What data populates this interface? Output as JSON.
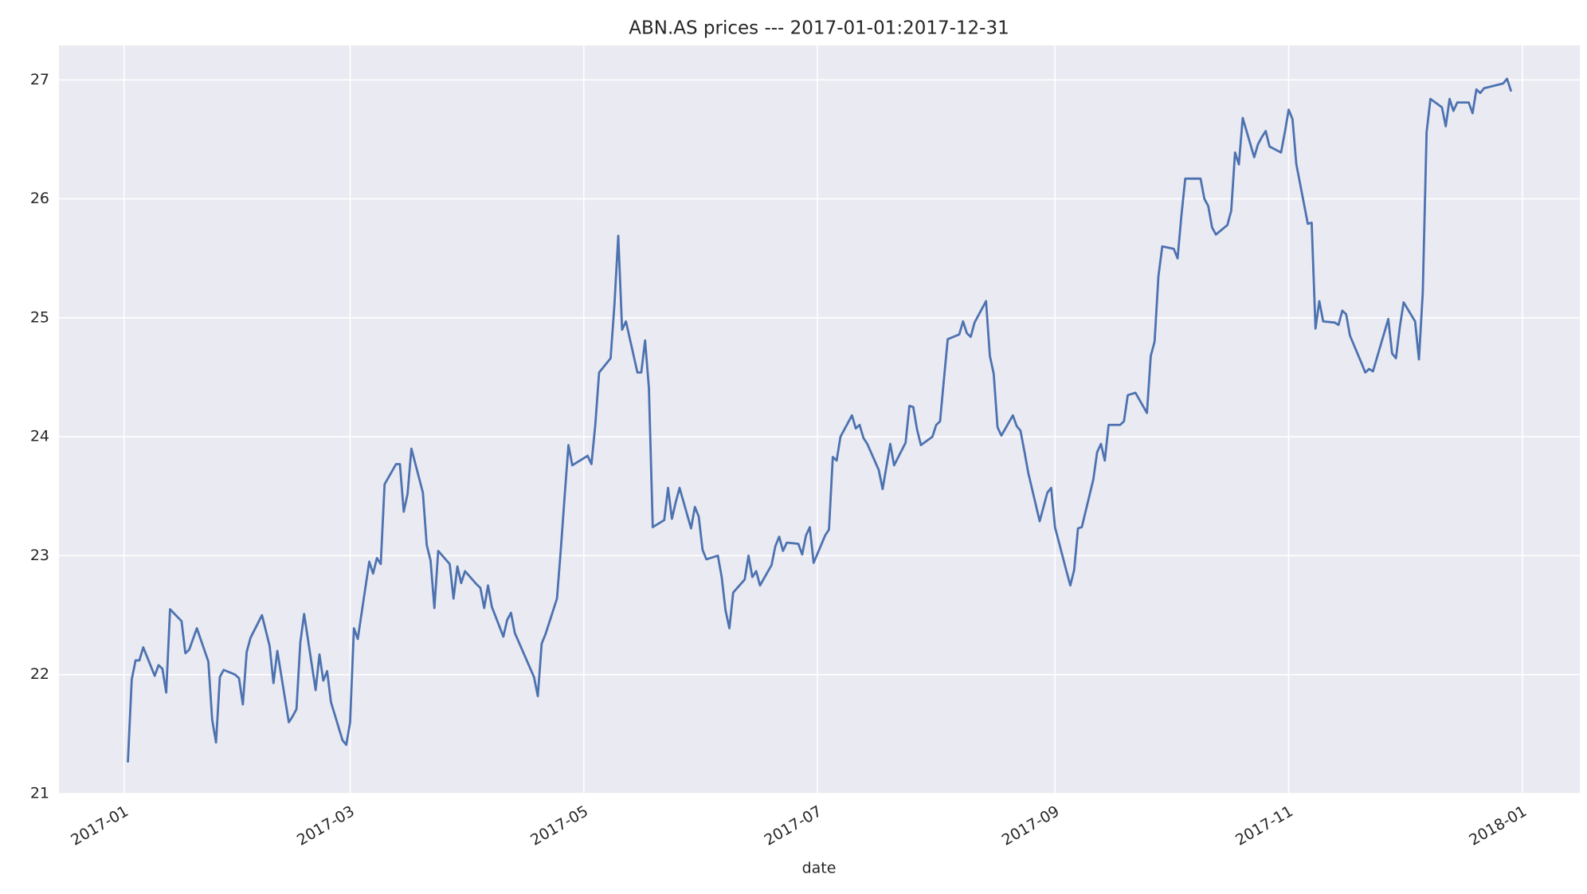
{
  "chart_data": {
    "type": "line",
    "title": "ABN.AS prices --- 2017-01-01:2017-12-31",
    "xlabel": "date",
    "color": "#4c72b0",
    "grid": true,
    "xlim": [
      "2016-12-15",
      "2018-01-16"
    ],
    "ylim": [
      21,
      27.29
    ],
    "yticks": [
      21,
      22,
      23,
      24,
      25,
      26,
      27
    ],
    "xticks": [
      {
        "value": "2017-01-01",
        "label": "2017-01"
      },
      {
        "value": "2017-03-01",
        "label": "2017-03"
      },
      {
        "value": "2017-05-01",
        "label": "2017-05"
      },
      {
        "value": "2017-07-01",
        "label": "2017-07"
      },
      {
        "value": "2017-09-01",
        "label": "2017-09"
      },
      {
        "value": "2017-11-01",
        "label": "2017-11"
      },
      {
        "value": "2018-01-01",
        "label": "2018-01"
      }
    ],
    "x": [
      "2017-01-02",
      "2017-01-03",
      "2017-01-04",
      "2017-01-05",
      "2017-01-06",
      "2017-01-09",
      "2017-01-10",
      "2017-01-11",
      "2017-01-12",
      "2017-01-13",
      "2017-01-16",
      "2017-01-17",
      "2017-01-18",
      "2017-01-19",
      "2017-01-20",
      "2017-01-23",
      "2017-01-24",
      "2017-01-25",
      "2017-01-26",
      "2017-01-27",
      "2017-01-30",
      "2017-01-31",
      "2017-02-01",
      "2017-02-02",
      "2017-02-03",
      "2017-02-06",
      "2017-02-07",
      "2017-02-08",
      "2017-02-09",
      "2017-02-10",
      "2017-02-13",
      "2017-02-14",
      "2017-02-15",
      "2017-02-16",
      "2017-02-17",
      "2017-02-20",
      "2017-02-21",
      "2017-02-22",
      "2017-02-23",
      "2017-02-24",
      "2017-02-27",
      "2017-02-28",
      "2017-03-01",
      "2017-03-02",
      "2017-03-03",
      "2017-03-06",
      "2017-03-07",
      "2017-03-08",
      "2017-03-09",
      "2017-03-10",
      "2017-03-13",
      "2017-03-14",
      "2017-03-15",
      "2017-03-16",
      "2017-03-17",
      "2017-03-20",
      "2017-03-21",
      "2017-03-22",
      "2017-03-23",
      "2017-03-24",
      "2017-03-27",
      "2017-03-28",
      "2017-03-29",
      "2017-03-30",
      "2017-03-31",
      "2017-04-03",
      "2017-04-04",
      "2017-04-05",
      "2017-04-06",
      "2017-04-07",
      "2017-04-10",
      "2017-04-11",
      "2017-04-12",
      "2017-04-13",
      "2017-04-18",
      "2017-04-19",
      "2017-04-20",
      "2017-04-21",
      "2017-04-24",
      "2017-04-25",
      "2017-04-26",
      "2017-04-27",
      "2017-04-28",
      "2017-05-02",
      "2017-05-03",
      "2017-05-04",
      "2017-05-05",
      "2017-05-08",
      "2017-05-09",
      "2017-05-10",
      "2017-05-11",
      "2017-05-12",
      "2017-05-15",
      "2017-05-16",
      "2017-05-17",
      "2017-05-18",
      "2017-05-19",
      "2017-05-22",
      "2017-05-23",
      "2017-05-24",
      "2017-05-25",
      "2017-05-26",
      "2017-05-29",
      "2017-05-30",
      "2017-05-31",
      "2017-06-01",
      "2017-06-02",
      "2017-06-05",
      "2017-06-06",
      "2017-06-07",
      "2017-06-08",
      "2017-06-09",
      "2017-06-12",
      "2017-06-13",
      "2017-06-14",
      "2017-06-15",
      "2017-06-16",
      "2017-06-19",
      "2017-06-20",
      "2017-06-21",
      "2017-06-22",
      "2017-06-23",
      "2017-06-26",
      "2017-06-27",
      "2017-06-28",
      "2017-06-29",
      "2017-06-30",
      "2017-07-03",
      "2017-07-04",
      "2017-07-05",
      "2017-07-06",
      "2017-07-07",
      "2017-07-10",
      "2017-07-11",
      "2017-07-12",
      "2017-07-13",
      "2017-07-14",
      "2017-07-17",
      "2017-07-18",
      "2017-07-19",
      "2017-07-20",
      "2017-07-21",
      "2017-07-24",
      "2017-07-25",
      "2017-07-26",
      "2017-07-27",
      "2017-07-28",
      "2017-07-31",
      "2017-08-01",
      "2017-08-02",
      "2017-08-03",
      "2017-08-04",
      "2017-08-07",
      "2017-08-08",
      "2017-08-09",
      "2017-08-10",
      "2017-08-11",
      "2017-08-14",
      "2017-08-15",
      "2017-08-16",
      "2017-08-17",
      "2017-08-18",
      "2017-08-21",
      "2017-08-22",
      "2017-08-23",
      "2017-08-24",
      "2017-08-25",
      "2017-08-28",
      "2017-08-29",
      "2017-08-30",
      "2017-08-31",
      "2017-09-01",
      "2017-09-04",
      "2017-09-05",
      "2017-09-06",
      "2017-09-07",
      "2017-09-08",
      "2017-09-11",
      "2017-09-12",
      "2017-09-13",
      "2017-09-14",
      "2017-09-15",
      "2017-09-18",
      "2017-09-19",
      "2017-09-20",
      "2017-09-21",
      "2017-09-22",
      "2017-09-25",
      "2017-09-26",
      "2017-09-27",
      "2017-09-28",
      "2017-09-29",
      "2017-10-02",
      "2017-10-03",
      "2017-10-04",
      "2017-10-05",
      "2017-10-06",
      "2017-10-09",
      "2017-10-10",
      "2017-10-11",
      "2017-10-12",
      "2017-10-13",
      "2017-10-16",
      "2017-10-17",
      "2017-10-18",
      "2017-10-19",
      "2017-10-20",
      "2017-10-23",
      "2017-10-24",
      "2017-10-25",
      "2017-10-26",
      "2017-10-27",
      "2017-10-30",
      "2017-10-31",
      "2017-11-01",
      "2017-11-02",
      "2017-11-03",
      "2017-11-06",
      "2017-11-07",
      "2017-11-08",
      "2017-11-09",
      "2017-11-10",
      "2017-11-13",
      "2017-11-14",
      "2017-11-15",
      "2017-11-16",
      "2017-11-17",
      "2017-11-20",
      "2017-11-21",
      "2017-11-22",
      "2017-11-23",
      "2017-11-24",
      "2017-11-27",
      "2017-11-28",
      "2017-11-29",
      "2017-11-30",
      "2017-12-01",
      "2017-12-04",
      "2017-12-05",
      "2017-12-06",
      "2017-12-07",
      "2017-12-08",
      "2017-12-11",
      "2017-12-12",
      "2017-12-13",
      "2017-12-14",
      "2017-12-15",
      "2017-12-18",
      "2017-12-19",
      "2017-12-20",
      "2017-12-21",
      "2017-12-22",
      "2017-12-27",
      "2017-12-28",
      "2017-12-29"
    ],
    "values": [
      21.27,
      21.96,
      22.12,
      22.12,
      22.23,
      21.99,
      22.08,
      22.05,
      21.85,
      22.55,
      22.45,
      22.18,
      22.21,
      22.3,
      22.39,
      22.11,
      21.62,
      21.43,
      21.98,
      22.04,
      22.0,
      21.97,
      21.75,
      22.19,
      22.31,
      22.5,
      22.37,
      22.24,
      21.93,
      22.2,
      21.6,
      21.65,
      21.71,
      22.27,
      22.51,
      21.87,
      22.17,
      21.95,
      22.03,
      21.77,
      21.45,
      21.41,
      21.6,
      22.39,
      22.3,
      22.95,
      22.85,
      22.98,
      22.93,
      23.6,
      23.77,
      23.77,
      23.37,
      23.52,
      23.9,
      23.53,
      23.09,
      22.96,
      22.56,
      23.04,
      22.93,
      22.64,
      22.91,
      22.77,
      22.87,
      22.76,
      22.73,
      22.56,
      22.75,
      22.57,
      22.32,
      22.46,
      22.52,
      22.35,
      21.98,
      21.82,
      22.26,
      22.34,
      22.64,
      23.05,
      23.5,
      23.93,
      23.76,
      23.84,
      23.77,
      24.1,
      24.54,
      24.66,
      25.11,
      25.69,
      24.9,
      24.97,
      24.54,
      24.54,
      24.81,
      24.41,
      23.24,
      23.3,
      23.57,
      23.31,
      23.45,
      23.57,
      23.23,
      23.41,
      23.33,
      23.05,
      22.97,
      23.0,
      22.82,
      22.54,
      22.39,
      22.69,
      22.8,
      23.0,
      22.82,
      22.87,
      22.75,
      22.92,
      23.08,
      23.16,
      23.04,
      23.11,
      23.1,
      23.01,
      23.17,
      23.24,
      22.94,
      23.17,
      23.22,
      23.83,
      23.8,
      24.0,
      24.18,
      24.07,
      24.1,
      23.99,
      23.94,
      23.72,
      23.56,
      23.75,
      23.94,
      23.76,
      23.95,
      24.26,
      24.25,
      24.06,
      23.93,
      24.0,
      24.1,
      24.13,
      24.48,
      24.82,
      24.86,
      24.97,
      24.87,
      24.84,
      24.96,
      25.14,
      24.68,
      24.53,
      24.08,
      24.01,
      24.18,
      24.09,
      24.05,
      23.88,
      23.7,
      23.29,
      23.41,
      23.53,
      23.57,
      23.24,
      22.87,
      22.75,
      22.88,
      23.23,
      23.24,
      23.64,
      23.87,
      23.94,
      23.8,
      24.1,
      24.1,
      24.13,
      24.35,
      24.36,
      24.37,
      24.2,
      24.68,
      24.8,
      25.35,
      25.6,
      25.58,
      25.5,
      25.86,
      26.17,
      26.17,
      26.17,
      26.0,
      25.94,
      25.76,
      25.7,
      25.78,
      25.9,
      26.39,
      26.29,
      26.68,
      26.35,
      26.46,
      26.52,
      26.57,
      26.44,
      26.39,
      26.56,
      26.75,
      26.67,
      26.29,
      25.79,
      25.8,
      24.91,
      25.14,
      24.97,
      24.96,
      24.94,
      25.06,
      25.03,
      24.85,
      24.62,
      24.54,
      24.57,
      24.55,
      24.66,
      24.99,
      24.7,
      24.66,
      24.92,
      25.13,
      24.97,
      24.65,
      25.21,
      26.56,
      26.84,
      26.77,
      26.61,
      26.84,
      26.74,
      26.81,
      26.81,
      26.72,
      26.92,
      26.89,
      26.93,
      26.97,
      27.01,
      26.91
    ]
  }
}
